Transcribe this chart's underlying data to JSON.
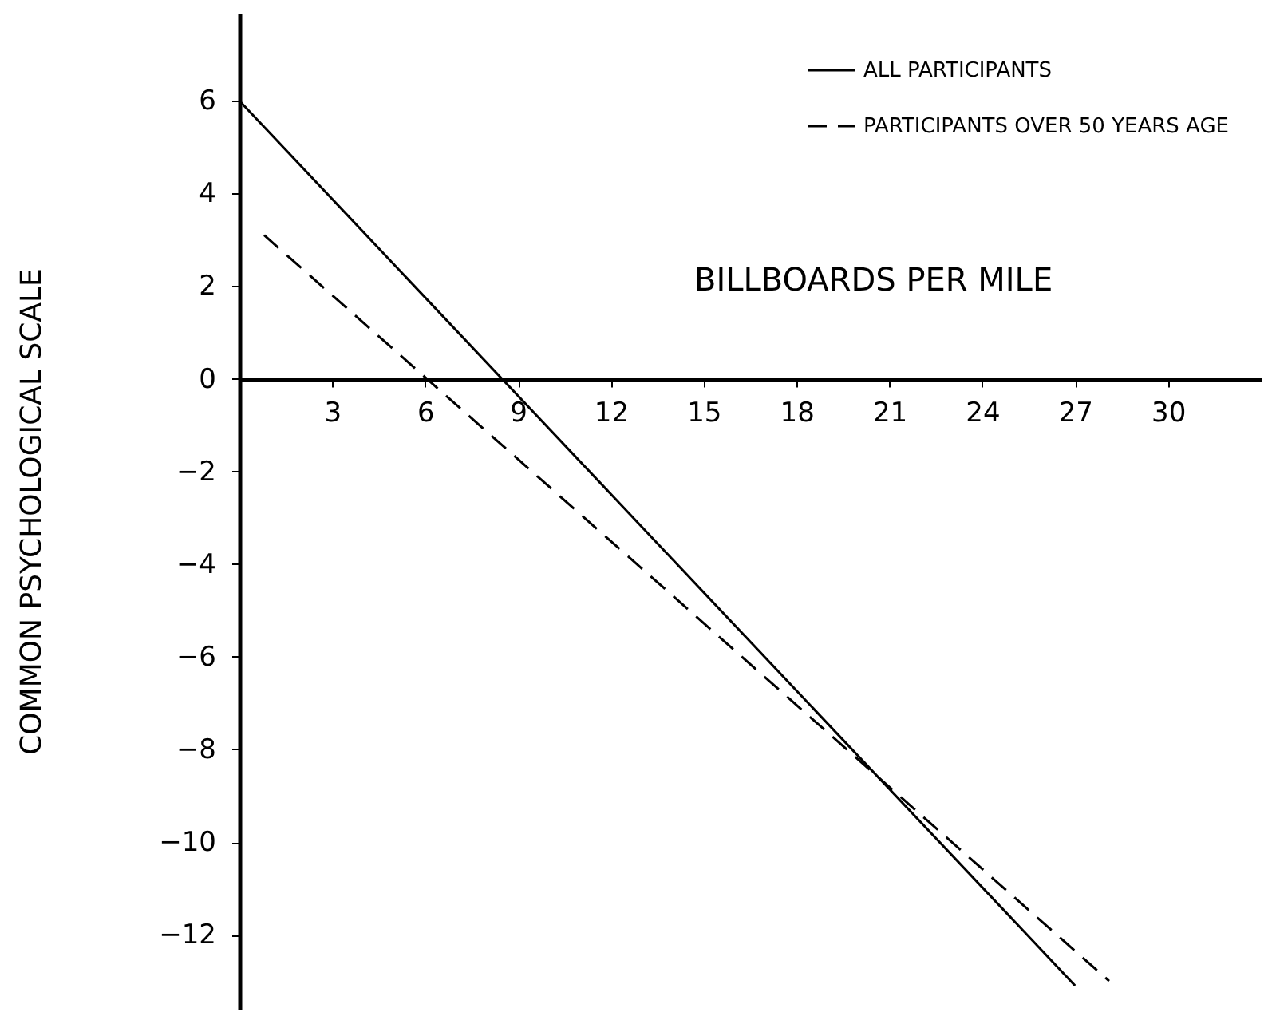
{
  "chart_data": {
    "type": "line",
    "xlabel": "BILLBOARDS PER MILE",
    "ylabel": "COMMON PSYCHOLOGICAL SCALE",
    "xlim": [
      0,
      33
    ],
    "xticks": [
      3,
      6,
      9,
      12,
      15,
      18,
      21,
      24,
      27,
      30
    ],
    "ylim": [
      -13.6,
      7.9
    ],
    "yticks": [
      -12,
      -10,
      -8,
      -6,
      -4,
      -2,
      0,
      2,
      4,
      6
    ],
    "grid": false,
    "legend": "top right",
    "series": [
      {
        "name": "ALL PARTICIPANTS",
        "color": "#000000",
        "line_style": "solid",
        "x": [
          0,
          27
        ],
        "values": [
          6,
          -13.1
        ]
      },
      {
        "name": "PARTICIPANTS OVER 50 YEARS AGE",
        "color": "#000000",
        "line_style": "dashed",
        "x": [
          0.8,
          28.1
        ],
        "values": [
          3.1,
          -13
        ]
      }
    ]
  }
}
